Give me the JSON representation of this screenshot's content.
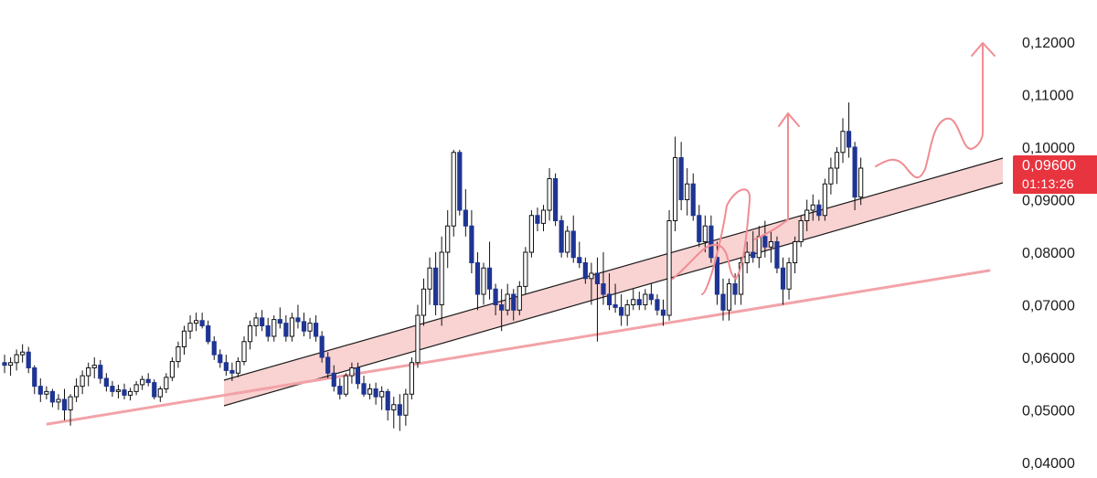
{
  "colors": {
    "background": "#ffffff",
    "bull_fill": "#ffffff",
    "bear_fill": "#1f3593",
    "candle_outline": "#111111",
    "channel_fill": "#f8caca",
    "channel_line": "#1a1a1a",
    "support_line": "#f2a3a8",
    "projection": "#f08c93",
    "price_badge": "#e8343f"
  },
  "price_badge": {
    "price": "0,09600",
    "countdown": "01:13:26"
  },
  "chart_data": {
    "type": "candlestick",
    "title": "",
    "xlabel": "",
    "ylabel": "",
    "ylim": [
      0.04,
      0.12
    ],
    "y_ticks": [
      0.04,
      0.05,
      0.06,
      0.07,
      0.08,
      0.09,
      0.1,
      0.11,
      0.12
    ],
    "y_tick_labels": [
      "0,04000",
      "0,05000",
      "0,06000",
      "0,07000",
      "0,08000",
      "0,09000",
      "0,10000",
      "0,11000",
      "0,12000"
    ],
    "grid": false,
    "legend": "none",
    "current_price": 0.096,
    "ohlc": [
      [
        0.059,
        0.0605,
        0.057,
        0.0585
      ],
      [
        0.0585,
        0.06,
        0.0565,
        0.059
      ],
      [
        0.059,
        0.0615,
        0.0575,
        0.0605
      ],
      [
        0.0605,
        0.0625,
        0.059,
        0.061
      ],
      [
        0.061,
        0.062,
        0.057,
        0.058
      ],
      [
        0.058,
        0.0585,
        0.053,
        0.0545
      ],
      [
        0.0545,
        0.056,
        0.0515,
        0.053
      ],
      [
        0.053,
        0.0545,
        0.052,
        0.0535
      ],
      [
        0.0535,
        0.054,
        0.0505,
        0.0515
      ],
      [
        0.0515,
        0.053,
        0.05,
        0.052
      ],
      [
        0.052,
        0.054,
        0.048,
        0.05
      ],
      [
        0.05,
        0.053,
        0.047,
        0.0525
      ],
      [
        0.0525,
        0.056,
        0.0515,
        0.0545
      ],
      [
        0.0545,
        0.0575,
        0.053,
        0.0565
      ],
      [
        0.0565,
        0.059,
        0.0545,
        0.058
      ],
      [
        0.058,
        0.06,
        0.056,
        0.0585
      ],
      [
        0.0585,
        0.0595,
        0.055,
        0.056
      ],
      [
        0.056,
        0.057,
        0.0535,
        0.0545
      ],
      [
        0.0545,
        0.0555,
        0.0525,
        0.0535
      ],
      [
        0.0535,
        0.0548,
        0.0522,
        0.0538
      ],
      [
        0.0538,
        0.055,
        0.052,
        0.0528
      ],
      [
        0.0528,
        0.0542,
        0.0518,
        0.0535
      ],
      [
        0.0535,
        0.0555,
        0.0528,
        0.0548
      ],
      [
        0.0548,
        0.0565,
        0.0538,
        0.0558
      ],
      [
        0.0558,
        0.057,
        0.0545,
        0.0552
      ],
      [
        0.0552,
        0.0558,
        0.052,
        0.0525
      ],
      [
        0.0525,
        0.0545,
        0.0515,
        0.054
      ],
      [
        0.054,
        0.057,
        0.0532,
        0.0562
      ],
      [
        0.0562,
        0.06,
        0.0555,
        0.0592
      ],
      [
        0.0592,
        0.063,
        0.058,
        0.062
      ],
      [
        0.062,
        0.066,
        0.0605,
        0.065
      ],
      [
        0.065,
        0.068,
        0.0635,
        0.0665
      ],
      [
        0.0665,
        0.0685,
        0.065,
        0.067
      ],
      [
        0.067,
        0.0685,
        0.0655,
        0.066
      ],
      [
        0.066,
        0.067,
        0.0625,
        0.063
      ],
      [
        0.063,
        0.064,
        0.0595,
        0.0605
      ],
      [
        0.0605,
        0.0615,
        0.058,
        0.059
      ],
      [
        0.059,
        0.0605,
        0.0565,
        0.0575
      ],
      [
        0.0575,
        0.059,
        0.0555,
        0.057
      ],
      [
        0.057,
        0.06,
        0.0562,
        0.0592
      ],
      [
        0.0592,
        0.064,
        0.0585,
        0.063
      ],
      [
        0.063,
        0.067,
        0.0615,
        0.066
      ],
      [
        0.066,
        0.0685,
        0.064,
        0.0675
      ],
      [
        0.0675,
        0.069,
        0.065,
        0.066
      ],
      [
        0.066,
        0.0675,
        0.063,
        0.064
      ],
      [
        0.064,
        0.068,
        0.063,
        0.0672
      ],
      [
        0.0672,
        0.0695,
        0.0655,
        0.0665
      ],
      [
        0.0665,
        0.068,
        0.063,
        0.064
      ],
      [
        0.064,
        0.0685,
        0.063,
        0.0675
      ],
      [
        0.0675,
        0.07,
        0.0655,
        0.0668
      ],
      [
        0.0668,
        0.0685,
        0.064,
        0.065
      ],
      [
        0.065,
        0.0675,
        0.0635,
        0.0665
      ],
      [
        0.0665,
        0.068,
        0.063,
        0.064
      ],
      [
        0.064,
        0.065,
        0.059,
        0.06
      ],
      [
        0.06,
        0.061,
        0.056,
        0.057
      ],
      [
        0.057,
        0.0585,
        0.0535,
        0.0545
      ],
      [
        0.0545,
        0.056,
        0.052,
        0.053
      ],
      [
        0.053,
        0.057,
        0.0525,
        0.0565
      ],
      [
        0.0565,
        0.059,
        0.055,
        0.058
      ],
      [
        0.058,
        0.059,
        0.054,
        0.055
      ],
      [
        0.055,
        0.0565,
        0.0525,
        0.053
      ],
      [
        0.053,
        0.055,
        0.052,
        0.054
      ],
      [
        0.054,
        0.0552,
        0.051,
        0.0525
      ],
      [
        0.0525,
        0.0545,
        0.05,
        0.0535
      ],
      [
        0.0535,
        0.054,
        0.048,
        0.05
      ],
      [
        0.05,
        0.0525,
        0.0465,
        0.051
      ],
      [
        0.051,
        0.053,
        0.046,
        0.049
      ],
      [
        0.049,
        0.054,
        0.047,
        0.053
      ],
      [
        0.053,
        0.06,
        0.052,
        0.059
      ],
      [
        0.059,
        0.07,
        0.058,
        0.068
      ],
      [
        0.068,
        0.075,
        0.066,
        0.073
      ],
      [
        0.073,
        0.079,
        0.07,
        0.077
      ],
      [
        0.077,
        0.08,
        0.068,
        0.07
      ],
      [
        0.07,
        0.083,
        0.066,
        0.08
      ],
      [
        0.08,
        0.088,
        0.077,
        0.085
      ],
      [
        0.085,
        0.0995,
        0.083,
        0.099
      ],
      [
        0.099,
        0.0995,
        0.087,
        0.088
      ],
      [
        0.088,
        0.092,
        0.083,
        0.085
      ],
      [
        0.085,
        0.088,
        0.076,
        0.078
      ],
      [
        0.078,
        0.08,
        0.069,
        0.072
      ],
      [
        0.072,
        0.078,
        0.07,
        0.077
      ],
      [
        0.077,
        0.082,
        0.071,
        0.073
      ],
      [
        0.073,
        0.074,
        0.068,
        0.07
      ],
      [
        0.07,
        0.073,
        0.065,
        0.069
      ],
      [
        0.069,
        0.074,
        0.068,
        0.072
      ],
      [
        0.072,
        0.073,
        0.067,
        0.069
      ],
      [
        0.069,
        0.0745,
        0.068,
        0.0735
      ],
      [
        0.0735,
        0.081,
        0.072,
        0.08
      ],
      [
        0.08,
        0.088,
        0.079,
        0.087
      ],
      [
        0.087,
        0.0885,
        0.084,
        0.0855
      ],
      [
        0.0855,
        0.089,
        0.084,
        0.088
      ],
      [
        0.088,
        0.096,
        0.086,
        0.094
      ],
      [
        0.094,
        0.095,
        0.085,
        0.086
      ],
      [
        0.086,
        0.087,
        0.079,
        0.08
      ],
      [
        0.08,
        0.085,
        0.079,
        0.084
      ],
      [
        0.084,
        0.087,
        0.078,
        0.079
      ],
      [
        0.079,
        0.082,
        0.077,
        0.078
      ],
      [
        0.078,
        0.079,
        0.074,
        0.075
      ],
      [
        0.075,
        0.078,
        0.07,
        0.076
      ],
      [
        0.076,
        0.079,
        0.063,
        0.074
      ],
      [
        0.074,
        0.08,
        0.07,
        0.072
      ],
      [
        0.072,
        0.076,
        0.069,
        0.07
      ],
      [
        0.07,
        0.074,
        0.0685,
        0.0695
      ],
      [
        0.0695,
        0.072,
        0.066,
        0.068
      ],
      [
        0.068,
        0.071,
        0.066,
        0.07
      ],
      [
        0.07,
        0.073,
        0.069,
        0.071
      ],
      [
        0.071,
        0.0725,
        0.069,
        0.07
      ],
      [
        0.07,
        0.073,
        0.069,
        0.072
      ],
      [
        0.072,
        0.074,
        0.07,
        0.071
      ],
      [
        0.071,
        0.072,
        0.068,
        0.069
      ],
      [
        0.069,
        0.071,
        0.066,
        0.068
      ],
      [
        0.068,
        0.088,
        0.067,
        0.086
      ],
      [
        0.086,
        0.102,
        0.084,
        0.098
      ],
      [
        0.098,
        0.101,
        0.088,
        0.09
      ],
      [
        0.09,
        0.096,
        0.087,
        0.093
      ],
      [
        0.093,
        0.095,
        0.086,
        0.087
      ],
      [
        0.087,
        0.089,
        0.081,
        0.082
      ],
      [
        0.082,
        0.087,
        0.08,
        0.085
      ],
      [
        0.085,
        0.087,
        0.078,
        0.079
      ],
      [
        0.079,
        0.082,
        0.07,
        0.072
      ],
      [
        0.072,
        0.075,
        0.067,
        0.069
      ],
      [
        0.069,
        0.075,
        0.067,
        0.074
      ],
      [
        0.074,
        0.076,
        0.07,
        0.072
      ],
      [
        0.072,
        0.079,
        0.07,
        0.078
      ],
      [
        0.078,
        0.082,
        0.076,
        0.08
      ],
      [
        0.08,
        0.084,
        0.078,
        0.079
      ],
      [
        0.079,
        0.085,
        0.077,
        0.083
      ],
      [
        0.083,
        0.086,
        0.079,
        0.081
      ],
      [
        0.081,
        0.084,
        0.078,
        0.082
      ],
      [
        0.082,
        0.083,
        0.076,
        0.077
      ],
      [
        0.077,
        0.079,
        0.07,
        0.073
      ],
      [
        0.073,
        0.079,
        0.071,
        0.078
      ],
      [
        0.078,
        0.083,
        0.076,
        0.082
      ],
      [
        0.082,
        0.087,
        0.081,
        0.086
      ],
      [
        0.086,
        0.09,
        0.084,
        0.088
      ],
      [
        0.088,
        0.091,
        0.086,
        0.089
      ],
      [
        0.089,
        0.09,
        0.086,
        0.087
      ],
      [
        0.087,
        0.094,
        0.086,
        0.093
      ],
      [
        0.093,
        0.098,
        0.091,
        0.096
      ],
      [
        0.096,
        0.1,
        0.093,
        0.099
      ],
      [
        0.099,
        0.1055,
        0.097,
        0.103
      ],
      [
        0.103,
        0.1085,
        0.098,
        0.1
      ],
      [
        0.1,
        0.101,
        0.088,
        0.0905
      ],
      [
        0.0905,
        0.098,
        0.089,
        0.096
      ]
    ]
  }
}
